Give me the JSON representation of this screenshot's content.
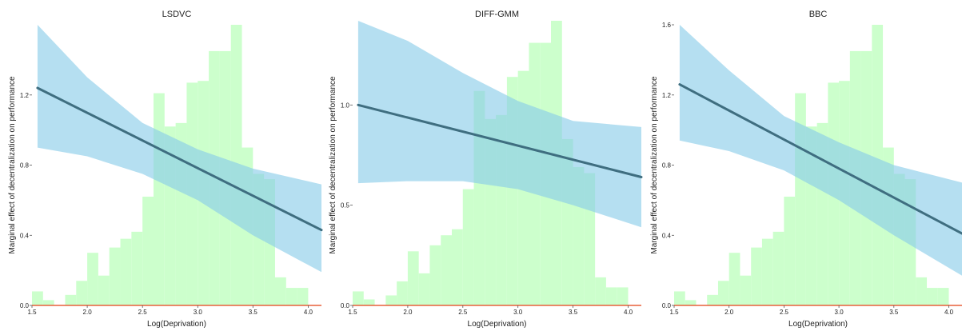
{
  "colors": {
    "hist": "#ccffcc",
    "band": "#87cbe8",
    "line": "#3f6e80",
    "baseline": "#e8603c",
    "text": "#222222",
    "axis": "#555555"
  },
  "chart_data": [
    {
      "type": "line",
      "title": "LSDVC",
      "xlabel": "Log(Deprivation)",
      "ylabel": "Marginal effect of decentralization on performance",
      "xlim": [
        1.5,
        4.12
      ],
      "ylim": [
        0.0,
        1.6
      ],
      "xticks": [
        1.5,
        2.0,
        2.5,
        3.0,
        3.5,
        4.0
      ],
      "xtick_labels": [
        "1.5",
        "2.0",
        "2.5",
        "3.0",
        "3.5",
        "4.0"
      ],
      "yticks": [
        0.0,
        0.4,
        0.8,
        1.2
      ],
      "ytick_labels": [
        "0.0",
        "0.4",
        "0.8",
        "1.2"
      ],
      "grid": false,
      "histogram": {
        "bin_start": 1.5,
        "bin_width": 0.1,
        "heights": [
          0.08,
          0.03,
          0.0,
          0.06,
          0.14,
          0.3,
          0.17,
          0.33,
          0.38,
          0.42,
          0.62,
          1.21,
          1.02,
          1.04,
          1.27,
          1.28,
          1.45,
          1.45,
          1.6,
          0.9,
          0.75,
          0.72,
          0.16,
          0.1,
          0.1,
          0.0
        ]
      },
      "fit": {
        "x": [
          1.55,
          4.12
        ],
        "y": [
          1.24,
          0.43
        ]
      },
      "band_upper": [
        [
          1.55,
          1.6
        ],
        [
          2.0,
          1.3
        ],
        [
          2.5,
          1.04
        ],
        [
          3.0,
          0.89
        ],
        [
          3.5,
          0.78
        ],
        [
          4.12,
          0.69
        ]
      ],
      "band_lower": [
        [
          1.55,
          0.9
        ],
        [
          2.0,
          0.85
        ],
        [
          2.5,
          0.75
        ],
        [
          3.0,
          0.6
        ],
        [
          3.5,
          0.4
        ],
        [
          4.12,
          0.19
        ]
      ]
    },
    {
      "type": "line",
      "title": "DIFF-GMM",
      "xlabel": "Log(Deprivation)",
      "ylabel": "Marginal effect of decentralization on performance",
      "xlim": [
        1.5,
        4.12
      ],
      "ylim": [
        0.0,
        1.4
      ],
      "xticks": [
        1.5,
        2.0,
        2.5,
        3.0,
        3.5,
        4.0
      ],
      "xtick_labels": [
        "1.5",
        "2.0",
        "2.5",
        "3.0",
        "3.5",
        "4.0"
      ],
      "yticks": [
        0.0,
        0.5,
        1.0
      ],
      "ytick_labels": [
        "0.0",
        "0.5",
        "1.0"
      ],
      "grid": false,
      "histogram": {
        "bin_start": 1.5,
        "bin_width": 0.1,
        "heights": [
          0.07,
          0.03,
          0.0,
          0.05,
          0.12,
          0.27,
          0.16,
          0.3,
          0.35,
          0.38,
          0.58,
          1.07,
          0.93,
          0.95,
          1.14,
          1.17,
          1.31,
          1.31,
          1.42,
          0.83,
          0.69,
          0.66,
          0.14,
          0.09,
          0.09,
          0.0
        ]
      },
      "fit": {
        "x": [
          1.55,
          4.12
        ],
        "y": [
          1.0,
          0.64
        ]
      },
      "band_upper": [
        [
          1.55,
          1.42
        ],
        [
          2.0,
          1.32
        ],
        [
          2.5,
          1.16
        ],
        [
          3.0,
          1.02
        ],
        [
          3.5,
          0.92
        ],
        [
          4.12,
          0.89
        ]
      ],
      "band_lower": [
        [
          1.55,
          0.61
        ],
        [
          2.0,
          0.62
        ],
        [
          2.5,
          0.62
        ],
        [
          3.0,
          0.58
        ],
        [
          3.5,
          0.5
        ],
        [
          4.12,
          0.39
        ]
      ]
    },
    {
      "type": "line",
      "title": "BBC",
      "xlabel": "Log(Deprivation)",
      "ylabel": "Marginal effect of decentralization on performance",
      "xlim": [
        1.5,
        4.12
      ],
      "ylim": [
        0.0,
        1.6
      ],
      "xticks": [
        1.5,
        2.0,
        2.5,
        3.0,
        3.5,
        4.0
      ],
      "xtick_labels": [
        "1.5",
        "2.0",
        "2.5",
        "3.0",
        "3.5",
        "4.0"
      ],
      "yticks": [
        0.0,
        0.4,
        0.8,
        1.2,
        1.6
      ],
      "ytick_labels": [
        "0.0",
        "0.4",
        "0.8",
        "1.2",
        "1.6"
      ],
      "grid": false,
      "histogram": {
        "bin_start": 1.5,
        "bin_width": 0.1,
        "heights": [
          0.08,
          0.03,
          0.0,
          0.06,
          0.14,
          0.3,
          0.17,
          0.33,
          0.38,
          0.42,
          0.62,
          1.21,
          1.02,
          1.04,
          1.27,
          1.28,
          1.45,
          1.45,
          1.6,
          0.9,
          0.75,
          0.72,
          0.16,
          0.1,
          0.1,
          0.0
        ]
      },
      "fit": {
        "x": [
          1.55,
          4.12
        ],
        "y": [
          1.26,
          0.41
        ]
      },
      "band_upper": [
        [
          1.55,
          1.6
        ],
        [
          2.0,
          1.34
        ],
        [
          2.5,
          1.08
        ],
        [
          3.0,
          0.93
        ],
        [
          3.5,
          0.8
        ],
        [
          4.12,
          0.7
        ]
      ],
      "band_lower": [
        [
          1.55,
          0.94
        ],
        [
          2.0,
          0.88
        ],
        [
          2.5,
          0.77
        ],
        [
          3.0,
          0.6
        ],
        [
          3.5,
          0.4
        ],
        [
          4.12,
          0.17
        ]
      ]
    }
  ]
}
